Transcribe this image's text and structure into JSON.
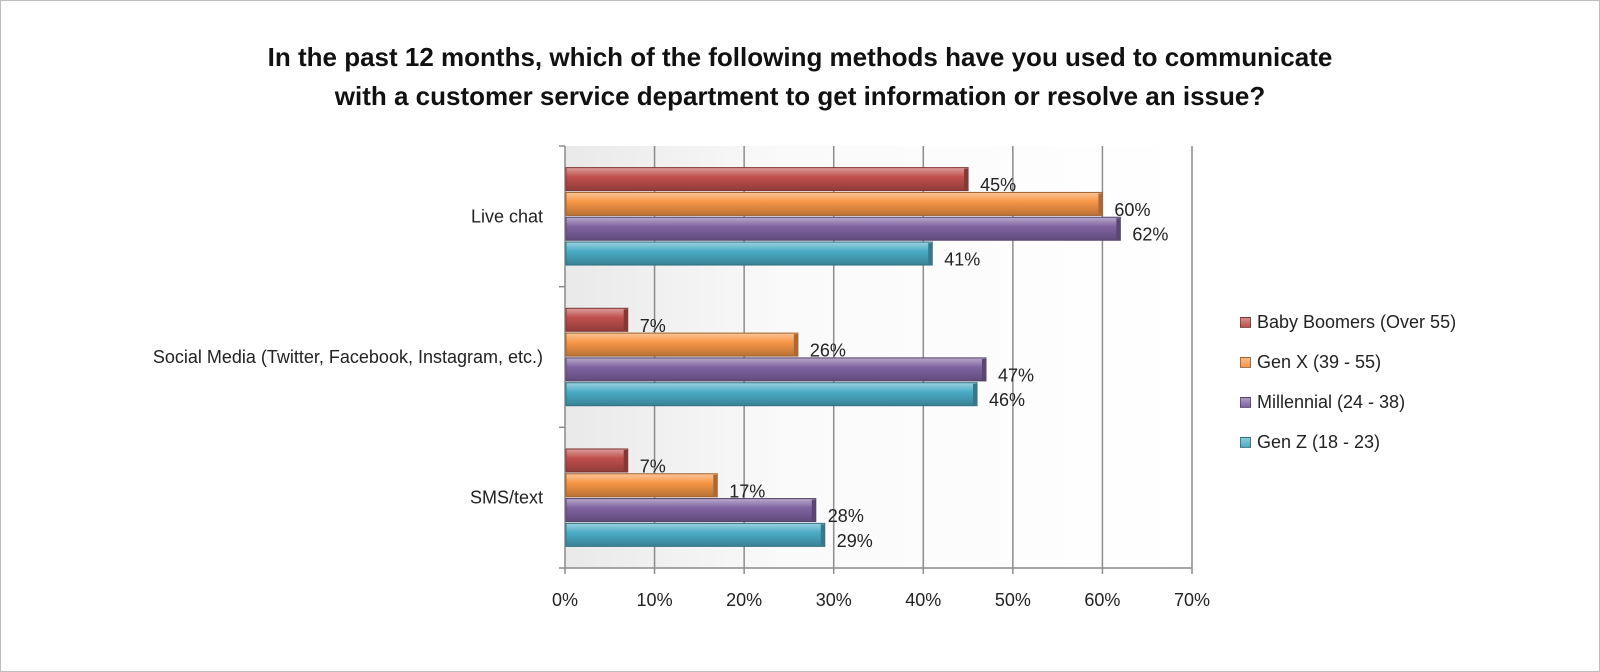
{
  "chart_data": {
    "type": "bar",
    "orientation": "horizontal",
    "title": "In the past 12 months, which of the following methods have you used to communicate with a customer service department to get information or resolve an issue?",
    "title_lines": [
      "In the past 12 months, which of the following methods have you used to communicate",
      "with a customer service department to get information or resolve an issue?"
    ],
    "categories": [
      "Live chat",
      "Social Media (Twitter, Facebook, Instagram, etc.)",
      "SMS/text"
    ],
    "series": [
      {
        "name": "Baby Boomers (Over 55)",
        "color": "#c0504d",
        "values": [
          45,
          7,
          7
        ],
        "labels": [
          "45%",
          "7%",
          "7%"
        ]
      },
      {
        "name": "Gen X (39 - 55)",
        "color": "#f79646",
        "values": [
          60,
          26,
          17
        ],
        "labels": [
          "60%",
          "26%",
          "17%"
        ]
      },
      {
        "name": "Millennial (24 - 38)",
        "color": "#8064a2",
        "values": [
          62,
          47,
          28
        ],
        "labels": [
          "62%",
          "47%",
          "28%"
        ]
      },
      {
        "name": "Gen Z (18 - 23)",
        "color": "#4bacc6",
        "values": [
          41,
          46,
          29
        ],
        "labels": [
          "41%",
          "46%",
          "29%"
        ]
      }
    ],
    "xlim": [
      0,
      70
    ],
    "xticks": [
      "0%",
      "10%",
      "20%",
      "30%",
      "40%",
      "50%",
      "60%",
      "70%"
    ],
    "grid": true,
    "legend_position": "right"
  }
}
